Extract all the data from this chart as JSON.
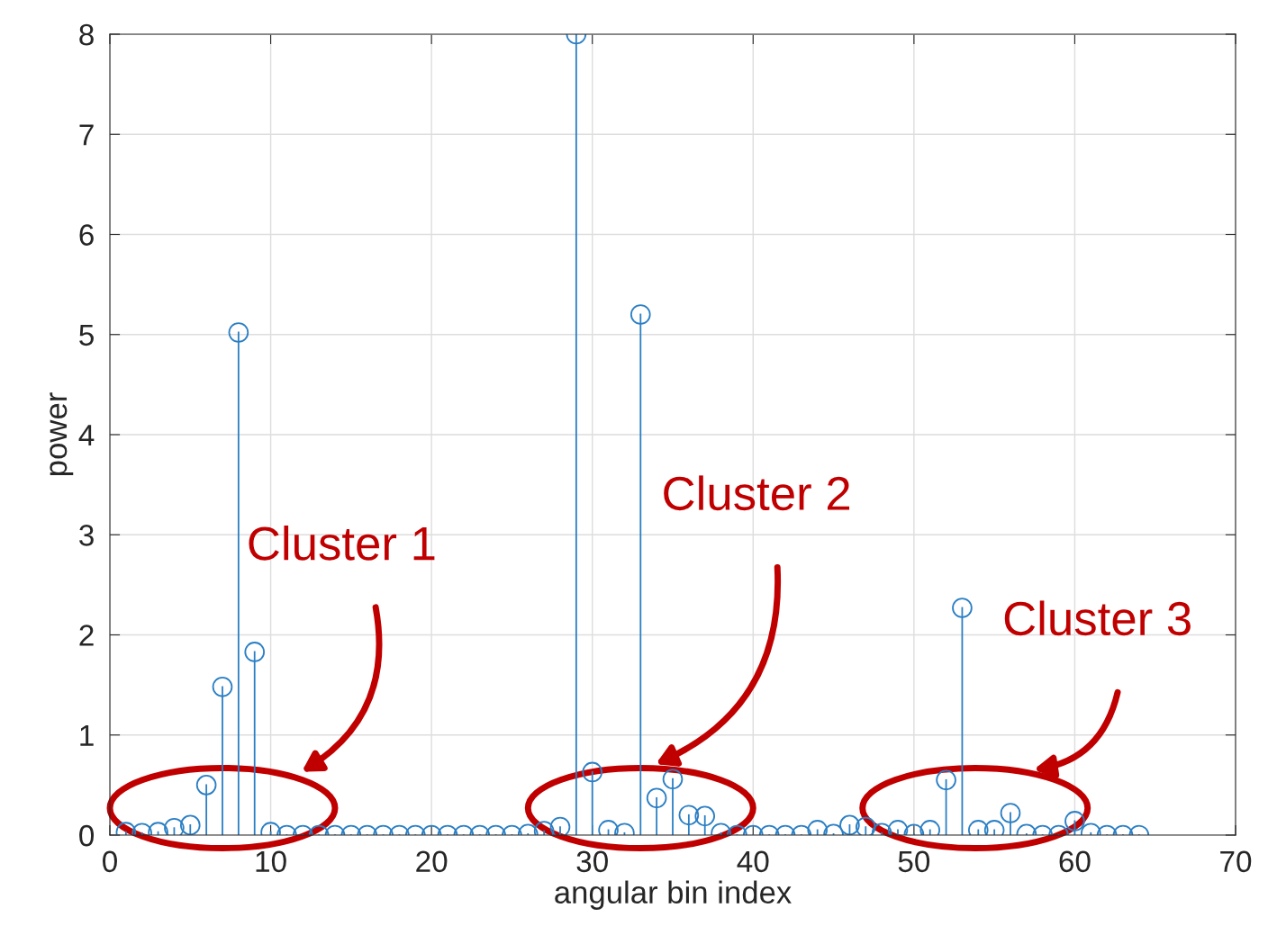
{
  "chart_data": {
    "type": "lollipop",
    "xlabel": "angular bin index",
    "ylabel": "power",
    "x": [
      1,
      2,
      3,
      4,
      5,
      6,
      7,
      8,
      9,
      10,
      11,
      12,
      13,
      14,
      15,
      16,
      17,
      18,
      19,
      20,
      21,
      22,
      23,
      24,
      25,
      26,
      27,
      28,
      29,
      30,
      31,
      32,
      33,
      34,
      35,
      36,
      37,
      38,
      39,
      40,
      41,
      42,
      43,
      44,
      45,
      46,
      47,
      48,
      49,
      50,
      51,
      52,
      53,
      54,
      55,
      56,
      57,
      58,
      59,
      60,
      61,
      62,
      63,
      64
    ],
    "series": [
      {
        "color": "#2b7fc4",
        "values": [
          0.03,
          0.02,
          0.03,
          0.07,
          0.1,
          0.5,
          1.48,
          5.02,
          1.83,
          0.03,
          0,
          0,
          0,
          0,
          0,
          0,
          0,
          0,
          0,
          0,
          0,
          0,
          0,
          0,
          0,
          0.01,
          0.04,
          0.08,
          8.0,
          0.63,
          0.05,
          0.02,
          5.2,
          0.37,
          0.56,
          0.2,
          0.19,
          0.02,
          0,
          0,
          0,
          0,
          0,
          0.05,
          0.01,
          0.1,
          0.08,
          0.02,
          0.05,
          0.01,
          0.05,
          0.55,
          2.27,
          0.05,
          0.05,
          0.22,
          0.01,
          0,
          0,
          0.14,
          0.02,
          0,
          0,
          0
        ]
      }
    ],
    "xlim": [
      0,
      70
    ],
    "xticks": [
      0,
      10,
      20,
      30,
      40,
      50,
      60,
      70
    ],
    "ylim": [
      0,
      8
    ],
    "yticks": [
      0,
      1,
      2,
      3,
      4,
      5,
      6,
      7,
      8
    ],
    "grid": true,
    "marker": "circle",
    "annotations": [
      "Cluster 1",
      "Cluster 2",
      "Cluster 3"
    ]
  }
}
